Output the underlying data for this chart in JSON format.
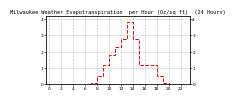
{
  "title": "Milwaukee Weather Evapotranspiration  per Hour (Oz/sq ft)  (24 Hours)",
  "hours": [
    0,
    1,
    2,
    3,
    4,
    5,
    6,
    7,
    8,
    9,
    10,
    11,
    12,
    13,
    14,
    15,
    16,
    17,
    18,
    19,
    20,
    21,
    22,
    23
  ],
  "values": [
    0,
    0,
    0,
    0,
    0,
    0,
    0,
    0.1,
    0.5,
    1.2,
    1.8,
    2.3,
    2.8,
    3.8,
    2.8,
    1.2,
    1.2,
    1.2,
    0.5,
    0.1,
    0,
    0,
    0,
    0
  ],
  "line_color": "#ff0000",
  "line_style": "--",
  "line_width": 0.7,
  "bg_color": "#ffffff",
  "grid_color": "#888888",
  "grid_style": ":",
  "ylim": [
    0,
    4.2
  ],
  "xlim": [
    -0.5,
    23.5
  ],
  "title_fontsize": 3.8,
  "tick_fontsize": 3.2,
  "xticks": [
    0,
    2,
    4,
    6,
    8,
    10,
    12,
    14,
    16,
    18,
    20,
    22
  ],
  "yticks_left": [
    0,
    1,
    2,
    3,
    4
  ],
  "yticks_right": [
    0,
    1,
    2,
    3,
    4
  ],
  "right_ylabels": [
    "0",
    "1",
    "2",
    "3",
    "4"
  ]
}
